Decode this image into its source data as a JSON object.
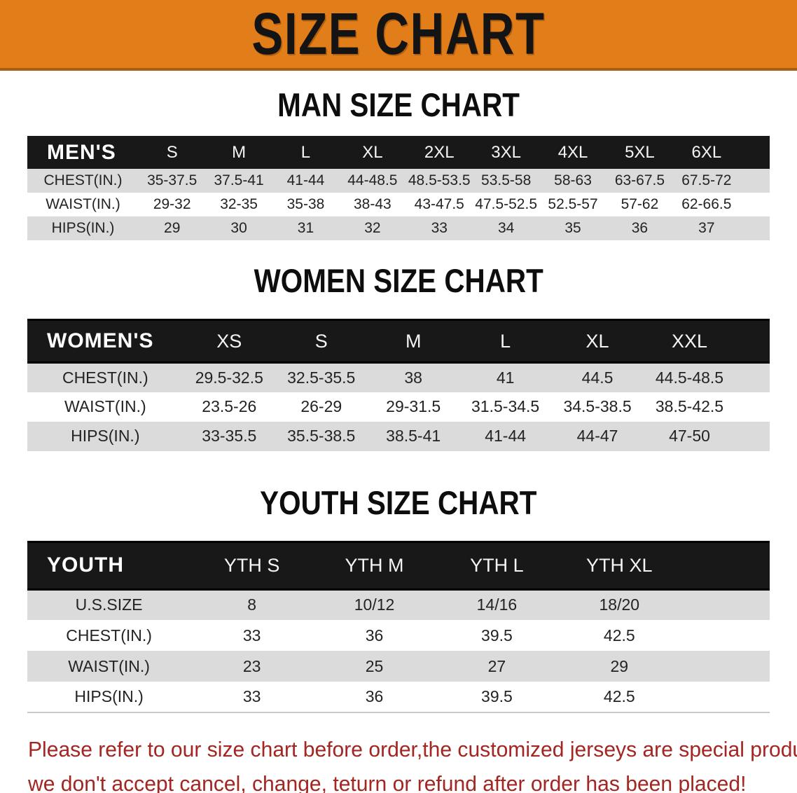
{
  "banner": {
    "title": "SIZE CHART",
    "bg_color": "#E27E19",
    "text_color": "#141414"
  },
  "sections": [
    {
      "heading": "MAN SIZE CHART",
      "table": {
        "header": [
          "MEN'S",
          "S",
          "M",
          "L",
          "XL",
          "2XL",
          "3XL",
          "4XL",
          "5XL",
          "6XL"
        ],
        "rows": [
          [
            "CHEST(IN.)",
            "35-37.5",
            "37.5-41",
            "41-44",
            "44-48.5",
            "48.5-53.5",
            "53.5-58",
            "58-63",
            "63-67.5",
            "67.5-72"
          ],
          [
            "WAIST(IN.)",
            "29-32",
            "32-35",
            "35-38",
            "38-43",
            "43-47.5",
            "47.5-52.5",
            "52.5-57",
            "57-62",
            "62-66.5"
          ],
          [
            "HIPS(IN.)",
            "29",
            "30",
            "31",
            "32",
            "33",
            "34",
            "35",
            "36",
            "37"
          ]
        ]
      }
    },
    {
      "heading": "WOMEN SIZE CHART",
      "table": {
        "header": [
          "WOMEN'S",
          "XS",
          "S",
          "M",
          "L",
          "XL",
          "XXL"
        ],
        "rows": [
          [
            "CHEST(IN.)",
            "29.5-32.5",
            "32.5-35.5",
            "38",
            "41",
            "44.5",
            "44.5-48.5"
          ],
          [
            "WAIST(IN.)",
            "23.5-26",
            "26-29",
            "29-31.5",
            "31.5-34.5",
            "34.5-38.5",
            "38.5-42.5"
          ],
          [
            "HIPS(IN.)",
            "33-35.5",
            "35.5-38.5",
            "38.5-41",
            "41-44",
            "44-47",
            "47-50"
          ]
        ]
      }
    },
    {
      "heading": "YOUTH SIZE CHART",
      "table": {
        "header": [
          "YOUTH",
          "YTH S",
          "YTH M",
          "YTH L",
          "YTH XL"
        ],
        "rows": [
          [
            "U.S.SIZE",
            "8",
            "10/12",
            "14/16",
            "18/20"
          ],
          [
            "CHEST(IN.)",
            "33",
            "36",
            "39.5",
            "42.5"
          ],
          [
            "WAIST(IN.)",
            "23",
            "25",
            "27",
            "29"
          ],
          [
            "HIPS(IN.)",
            "33",
            "36",
            "39.5",
            "42.5"
          ]
        ]
      }
    }
  ],
  "footer": {
    "lines": [
      "Please refer to our size chart before order,the customized jerseys are special products,",
      "we don't accept cancel, change, teturn or refund after order has been placed!"
    ],
    "text_color": "#A32622"
  },
  "colors": {
    "header_bar": "#181818",
    "row_gray": "#dbdbdb",
    "row_white": "#ffffff"
  }
}
